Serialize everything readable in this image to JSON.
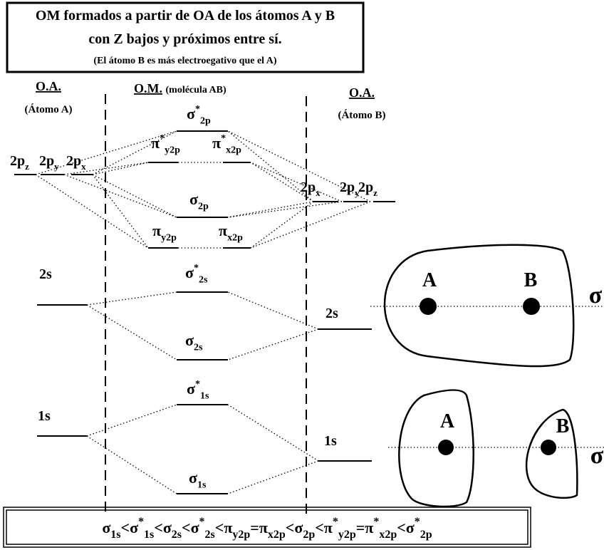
{
  "title": {
    "lines": [
      "OM formados a partir de OA de los átomos A y B",
      "con Z bajos y próximos entre sí.",
      "(El átomo B es más electroegativo que el A)"
    ]
  },
  "headers": {
    "atom_a": {
      "label": "O.A.",
      "note": "(Átomo A)"
    },
    "molecule": {
      "label": "O.M.",
      "note": "(molécula AB)"
    },
    "atom_b": {
      "label": "O.A.",
      "note": "(Átomo B)"
    }
  },
  "atom_a_levels": [
    {
      "base": "2p",
      "sub": "z"
    },
    {
      "base": "2p",
      "sub": "y"
    },
    {
      "base": "2p",
      "sub": "x"
    },
    {
      "base": "2s"
    },
    {
      "base": "1s"
    }
  ],
  "atom_b_levels": [
    {
      "base": "2p",
      "sub": "x"
    },
    {
      "base": "2p",
      "sub": "y"
    },
    {
      "base": "2p",
      "sub": "z"
    },
    {
      "base": "2s"
    },
    {
      "base": "1s"
    }
  ],
  "mo_levels": [
    {
      "base": "σ",
      "sup": "*",
      "sub": "2p"
    },
    {
      "base": "π",
      "sup": "*",
      "sub": "y2p"
    },
    {
      "base": "π",
      "sup": "*",
      "sub": "x2p"
    },
    {
      "base": "σ",
      "sub": "2p"
    },
    {
      "base": "π",
      "sub": "y2p"
    },
    {
      "base": "π",
      "sub": "x2p"
    },
    {
      "base": "σ",
      "sup": "*",
      "sub": "2s"
    },
    {
      "base": "σ",
      "sub": "2s"
    },
    {
      "base": "σ",
      "sup": "*",
      "sub": "1s"
    },
    {
      "base": "σ",
      "sub": "1s"
    }
  ],
  "orbital_diagrams": [
    {
      "atom_1": "A",
      "atom_2": "B",
      "symmetry": "σ"
    },
    {
      "atom_1": "A",
      "atom_2": "B",
      "symmetry": "σ"
    }
  ],
  "energy_order": {
    "terms": [
      {
        "base": "σ",
        "sub": "1s"
      },
      {
        "base": "σ",
        "sup": "*",
        "sub": "1s"
      },
      {
        "base": "σ",
        "sub": "2s"
      },
      {
        "base": "σ",
        "sup": "*",
        "sub": "2s"
      },
      {
        "base": "π",
        "sub": "y2p"
      },
      {
        "base": "π",
        "sub": "x2p"
      },
      {
        "base": "σ",
        "sub": "2p"
      },
      {
        "base": "π",
        "sup": "*",
        "sub": "y2p"
      },
      {
        "base": "π",
        "sup": "*",
        "sub": "x2p"
      },
      {
        "base": "σ",
        "sup": "*",
        "sub": "2p"
      }
    ],
    "operators": [
      "<",
      "<",
      "<",
      "<",
      "=",
      "<",
      "<",
      "=",
      "<"
    ]
  }
}
